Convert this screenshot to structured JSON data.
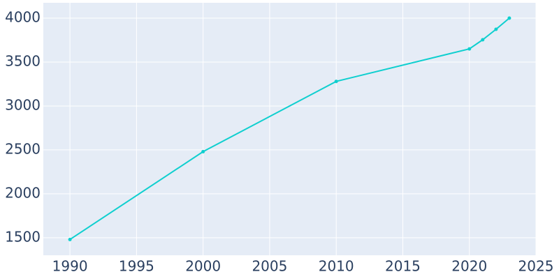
{
  "chart_data": {
    "type": "line",
    "x": [
      1990,
      2000,
      2010,
      2020,
      2021,
      2022,
      2023
    ],
    "series": [
      {
        "color": "#0fcfcf",
        "values": [
          1480,
          2480,
          3280,
          3650,
          3754,
          3873,
          4000
        ]
      }
    ],
    "xlim": [
      1988,
      2025
    ],
    "xticks": [
      1990,
      1995,
      2000,
      2005,
      2010,
      2015,
      2020,
      2025
    ],
    "ylim": [
      1300,
      4175
    ],
    "yticks": [
      1500,
      2000,
      2500,
      3000,
      3500,
      4000
    ],
    "grid": true
  }
}
